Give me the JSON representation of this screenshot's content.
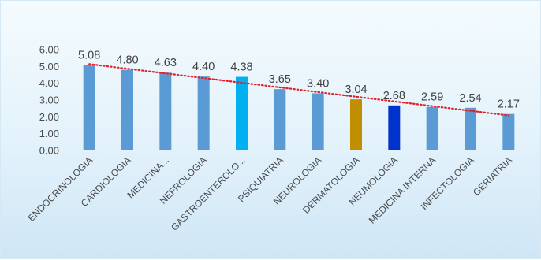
{
  "chart_data": {
    "type": "bar",
    "title": "",
    "xlabel": "",
    "ylabel": "",
    "categories": [
      "ENDOCRINOLOGIA",
      "CARDIOLOGIA",
      "MEDICINA...",
      "NEFROLOGIA",
      "GASTROENTEROLO...",
      "PSIQUIATRIA",
      "NEUROLOGIA",
      "DERMATOLOGIA",
      "NEUMOLOGIA",
      "MEDICINA INTERNA",
      "INFECTOLOGIA",
      "GERIATRIA"
    ],
    "values": [
      5.08,
      4.8,
      4.63,
      4.4,
      4.38,
      3.65,
      3.4,
      3.04,
      2.68,
      2.59,
      2.54,
      2.17
    ],
    "value_labels": [
      "5.08",
      "4.80",
      "4.63",
      "4.40",
      "4.38",
      "3.65",
      "3.40",
      "3.04",
      "2.68",
      "2.59",
      "2.54",
      "2.17"
    ],
    "bar_colors": [
      "#5b9bd5",
      "#5b9bd5",
      "#5b9bd5",
      "#5b9bd5",
      "#00b0f0",
      "#5b9bd5",
      "#5b9bd5",
      "#bf8f00",
      "#0033cc",
      "#5b9bd5",
      "#5b9bd5",
      "#5b9bd5"
    ],
    "ylim": [
      0,
      6
    ],
    "yticks": [
      "0.00",
      "1.00",
      "2.00",
      "3.00",
      "4.00",
      "5.00",
      "6.00"
    ],
    "grid": false,
    "trendline": {
      "type": "linear",
      "color": "#e0202a",
      "style": "dotted"
    }
  }
}
